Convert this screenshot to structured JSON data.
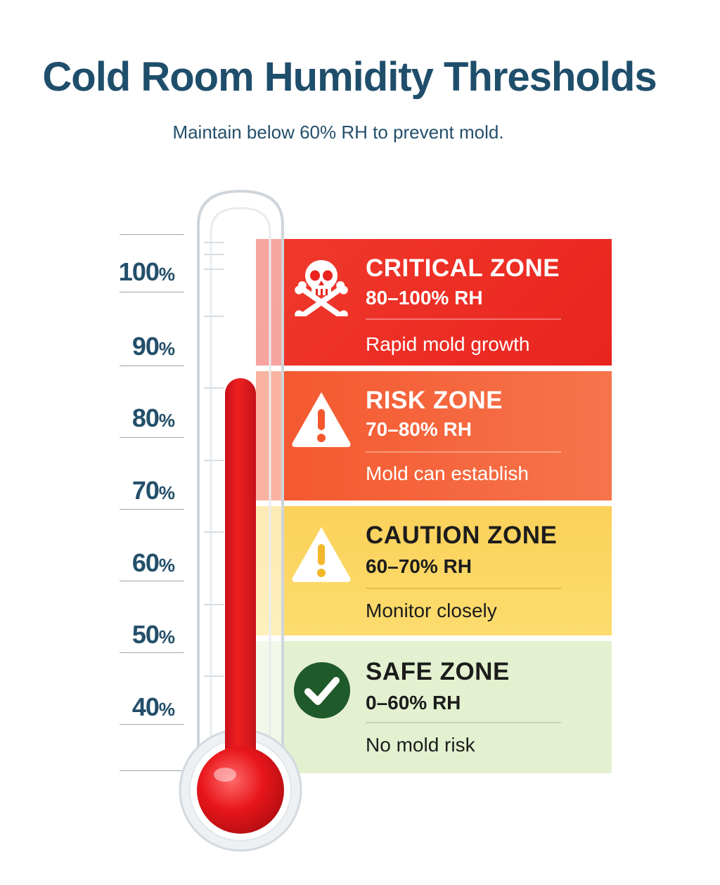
{
  "title": "Cold Room Humidity Thresholds",
  "subtitle": "Maintain below 60% RH to prevent mold.",
  "scale": {
    "unit": "%",
    "ticks": [
      "100",
      "90",
      "80",
      "70",
      "60",
      "50",
      "40"
    ]
  },
  "thermometer": {
    "fill_level_percent": 88,
    "color": "#e01b1b"
  },
  "zones": [
    {
      "name": "CRITICAL ZONE",
      "range": "80–100% RH",
      "description": "Rapid mold growth",
      "icon": "skull-crossbones-icon",
      "color": "#ee2a24"
    },
    {
      "name": "RISK ZONE",
      "range": "70–80% RH",
      "description": "Mold can establish",
      "icon": "warning-icon",
      "color": "#f5633f"
    },
    {
      "name": "CAUTION ZONE",
      "range": "60–70% RH",
      "description": "Monitor closely",
      "icon": "warning-icon",
      "color": "#fbd45a"
    },
    {
      "name": "SAFE ZONE",
      "range": "0–60% RH",
      "description": "No mold risk",
      "icon": "checkmark-icon",
      "color": "#e3f1cf"
    }
  ]
}
